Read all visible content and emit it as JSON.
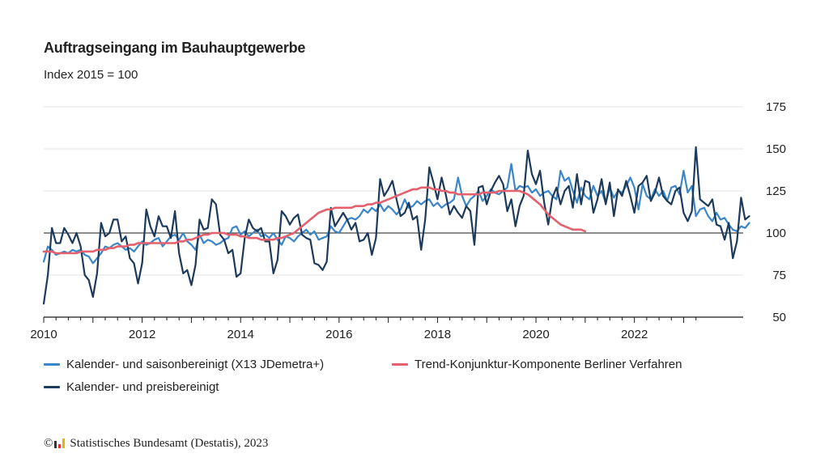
{
  "title": "Auftragseingang im Bauhauptgewerbe",
  "subtitle": "Index 2015 = 100",
  "footer": {
    "copyright": "©",
    "text": "Statistisches Bundesamt (Destatis), 2023"
  },
  "colors": {
    "series1": "#3a86c8",
    "series2": "#1b3a5c",
    "trend": "#e4606d",
    "axis": "#1a1a1a",
    "grid": "#e3e3e3"
  },
  "chart_data": {
    "type": "line",
    "title": "Auftragseingang im Bauhauptgewerbe",
    "subtitle": "Index 2015 = 100",
    "xlim": [
      2010,
      2023.42
    ],
    "ylim": [
      50,
      175
    ],
    "x_ticks": [
      "2010",
      "2012",
      "2014",
      "2016",
      "2018",
      "2020",
      "2022"
    ],
    "y_ticks": [
      "175",
      "150",
      "125",
      "100",
      "75",
      "50"
    ],
    "y_ticks_values": [
      175,
      150,
      125,
      100,
      75,
      50
    ],
    "x_ticks_values": [
      2010,
      2012,
      2014,
      2016,
      2018,
      2020,
      2022
    ],
    "reference_line": 100,
    "grid": "horizontal",
    "legend_position": "bottom",
    "series": [
      {
        "name": "Kalender- und saisonbereinigt (X13 JDemetra+)",
        "key": "sa",
        "start": 2010.0,
        "step": 0.08333,
        "values": [
          83,
          92,
          90,
          87,
          88,
          89,
          88,
          90,
          89,
          90,
          87,
          86,
          82,
          85,
          88,
          92,
          91,
          93,
          94,
          92,
          90,
          91,
          89,
          92,
          95,
          93,
          94,
          96,
          97,
          92,
          95,
          98,
          99,
          96,
          100,
          95,
          93,
          90,
          99,
          94,
          96,
          95,
          93,
          94,
          96,
          97,
          103,
          104,
          99,
          101,
          98,
          100,
          102,
          98,
          99,
          97,
          100,
          96,
          93,
          98,
          97,
          95,
          98,
          100,
          102,
          99,
          101,
          96,
          97,
          98,
          104,
          101,
          100,
          104,
          108,
          109,
          108,
          110,
          114,
          112,
          115,
          113,
          117,
          113,
          116,
          114,
          111,
          114,
          120,
          115,
          116,
          119,
          117,
          119,
          120,
          116,
          118,
          115,
          117,
          118,
          120,
          133,
          122,
          116,
          120,
          122,
          125,
          119,
          122,
          126,
          124,
          123,
          125,
          127,
          141,
          125,
          128,
          127,
          128,
          124,
          126,
          122,
          124,
          125,
          122,
          120,
          137,
          131,
          133,
          125,
          118,
          127,
          122,
          120,
          128,
          122,
          125,
          118,
          127,
          121,
          125,
          124,
          128,
          133,
          127,
          114,
          129,
          122,
          120,
          126,
          122,
          125,
          119,
          127,
          128,
          123,
          137,
          124,
          128,
          110,
          114,
          115,
          110,
          107,
          112,
          108,
          109,
          105,
          102,
          101,
          104,
          103,
          106
        ]
      },
      {
        "name": "Kalender- und preisbereinigt",
        "key": "raw",
        "start": 2010.0,
        "step": 0.08333,
        "values": [
          58,
          75,
          103,
          94,
          94,
          103,
          99,
          94,
          100,
          92,
          75,
          72,
          62,
          76,
          106,
          98,
          100,
          108,
          108,
          95,
          98,
          85,
          82,
          70,
          82,
          114,
          104,
          98,
          110,
          104,
          104,
          97,
          113,
          88,
          76,
          78,
          69,
          81,
          108,
          102,
          103,
          120,
          117,
          99,
          96,
          88,
          90,
          74,
          76,
          97,
          108,
          103,
          101,
          103,
          95,
          95,
          76,
          84,
          113,
          110,
          105,
          109,
          111,
          99,
          97,
          96,
          82,
          81,
          78,
          83,
          115,
          104,
          108,
          112,
          108,
          102,
          106,
          95,
          96,
          100,
          87,
          97,
          132,
          122,
          126,
          131,
          120,
          110,
          112,
          118,
          108,
          110,
          90,
          108,
          139,
          130,
          120,
          133,
          123,
          111,
          116,
          112,
          109,
          116,
          113,
          93,
          127,
          128,
          117,
          125,
          130,
          134,
          129,
          113,
          120,
          104,
          116,
          122,
          149,
          135,
          129,
          137,
          118,
          105,
          121,
          127,
          117,
          125,
          128,
          115,
          135,
          117,
          131,
          130,
          112,
          120,
          132,
          117,
          130,
          110,
          126,
          122,
          131,
          122,
          112,
          128,
          130,
          134,
          119,
          124,
          133,
          122,
          119,
          117,
          125,
          127,
          112,
          107,
          113,
          151,
          120,
          118,
          116,
          120,
          105,
          104,
          96,
          106,
          85,
          95,
          121,
          108,
          110
        ]
      },
      {
        "name": "Trend-Konjunktur-Komponente Berliner Verfahren",
        "key": "trend",
        "start": 2010.0,
        "step": 0.08333,
        "values": [
          89,
          89,
          89,
          88,
          88,
          88,
          88,
          88,
          88,
          89,
          89,
          89,
          89,
          90,
          90,
          90,
          91,
          91,
          92,
          92,
          92,
          93,
          93,
          94,
          94,
          94,
          94,
          94,
          94,
          94,
          94,
          94,
          94,
          95,
          95,
          96,
          96,
          97,
          98,
          99,
          99,
          100,
          100,
          100,
          100,
          99,
          99,
          99,
          98,
          98,
          97,
          97,
          97,
          96,
          96,
          96,
          96,
          97,
          97,
          98,
          99,
          100,
          102,
          104,
          106,
          108,
          110,
          112,
          113,
          114,
          114,
          115,
          115,
          115,
          115,
          115,
          116,
          116,
          116,
          117,
          117,
          118,
          118,
          119,
          120,
          121,
          122,
          123,
          124,
          125,
          126,
          126,
          127,
          127,
          127,
          126,
          126,
          125,
          125,
          124,
          124,
          123,
          123,
          123,
          123,
          123,
          123,
          124,
          124,
          124,
          124,
          125,
          125,
          125,
          125,
          125,
          125,
          124,
          123,
          121,
          119,
          117,
          114,
          111,
          109,
          107,
          105,
          104,
          103,
          102,
          102,
          102,
          101
        ]
      }
    ]
  }
}
